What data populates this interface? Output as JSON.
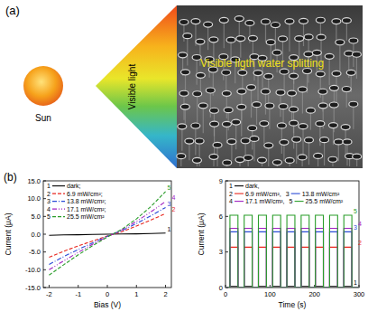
{
  "figure": {
    "panel_a": {
      "label": "(a)",
      "sun": "Sun",
      "light": "Visible light",
      "caption": "Visible ligth water splitting"
    },
    "panel_b": {
      "label": "(b)"
    }
  },
  "chart_data": [
    {
      "type": "line",
      "xlabel": "Bias (V)",
      "ylabel": "Current (μA)",
      "x": [
        -2,
        -1.5,
        -1,
        -0.5,
        0,
        0.5,
        1,
        1.5,
        2
      ],
      "xlim": [
        -2.2,
        2.2
      ],
      "ylim": [
        -15,
        15
      ],
      "xticks": [
        -2,
        -1,
        0,
        1,
        2
      ],
      "yticks": [
        {
          "value": -15,
          "label": "-15.0"
        },
        {
          "value": -10,
          "label": "-10.0"
        },
        {
          "value": -5,
          "label": "-5.0"
        },
        {
          "value": 0,
          "label": "0.0"
        },
        {
          "value": 5,
          "label": "5.0"
        },
        {
          "value": 10,
          "label": "10.0"
        },
        {
          "value": 15,
          "label": "15.0"
        }
      ],
      "legend": "upper left",
      "series": [
        {
          "label": "1",
          "name": "dark;",
          "color": "#000000",
          "line_style": "solid",
          "values": [
            -0.3,
            -0.2,
            -0.15,
            -0.05,
            0,
            0.05,
            0.1,
            0.2,
            0.3
          ]
        },
        {
          "label": "2",
          "name": "6.9 mW/cm²;",
          "color": "#e8271f",
          "line_style": "dashed",
          "values": [
            -6.5,
            -4.8,
            -3.3,
            -1.9,
            -0.5,
            0.7,
            2.3,
            4.0,
            5.8
          ]
        },
        {
          "label": "3",
          "name": "13.8 mW/cm²;",
          "color": "#2a4bd7",
          "line_style": "dashdot",
          "values": [
            -8.5,
            -6.3,
            -4.3,
            -2.4,
            -0.6,
            1.0,
            3.0,
            5.2,
            7.5
          ]
        },
        {
          "label": "4",
          "name": "17.1 mW/cm²;",
          "color": "#a020c0",
          "line_style": "dashdotdot",
          "values": [
            -10.0,
            -7.5,
            -5.1,
            -2.8,
            -0.7,
            1.2,
            3.6,
            6.3,
            9.2
          ]
        },
        {
          "label": "5",
          "name": "25.5 mW/cm²",
          "color": "#2a9d2a",
          "line_style": "dashed",
          "values": [
            -11.5,
            -8.6,
            -5.8,
            -3.2,
            -0.8,
            1.4,
            4.3,
            7.8,
            12.0
          ]
        }
      ]
    },
    {
      "type": "line",
      "xlabel": "Time (s)",
      "ylabel": "Current (μA)",
      "x": [
        0,
        10,
        10,
        28,
        28,
        42,
        42,
        60,
        60,
        74,
        74,
        92,
        92,
        106,
        106,
        124,
        124,
        138,
        138,
        156,
        156,
        170,
        170,
        188,
        188,
        202,
        202,
        220,
        220,
        234,
        234,
        252,
        252,
        266,
        266,
        284,
        284,
        300
      ],
      "xlim": [
        0,
        300
      ],
      "ylim": [
        0,
        9
      ],
      "xticks": [
        0,
        100,
        200,
        300
      ],
      "yticks": [
        0,
        3,
        6,
        9
      ],
      "legend": "upper left",
      "series": [
        {
          "label": "1",
          "name": "dark,",
          "color": "#000000",
          "line_style": "solid",
          "values": [
            0,
            0,
            0.1,
            0.1,
            0,
            0,
            0.1,
            0.1,
            0,
            0,
            0.1,
            0.1,
            0,
            0,
            0.1,
            0.1,
            0,
            0,
            0.1,
            0.1,
            0,
            0,
            0.1,
            0.1,
            0,
            0,
            0.1,
            0.1,
            0,
            0,
            0.1,
            0.1,
            0,
            0,
            0.1,
            0.1,
            0,
            0
          ]
        },
        {
          "label": "2",
          "name": "6.9 mW/cm²,",
          "color": "#e8271f",
          "line_style": "solid",
          "values": [
            0,
            0,
            3.4,
            3.4,
            0,
            0,
            3.4,
            3.4,
            0,
            0,
            3.4,
            3.4,
            0,
            0,
            3.4,
            3.4,
            0,
            0,
            3.4,
            3.4,
            0,
            0,
            3.4,
            3.4,
            0,
            0,
            3.4,
            3.4,
            0,
            0,
            3.4,
            3.4,
            0,
            0,
            3.4,
            3.4,
            0,
            0
          ]
        },
        {
          "label": "3",
          "name": "13.8 mW/cm²",
          "color": "#2a4bd7",
          "line_style": "solid",
          "values": [
            0,
            0,
            4.7,
            4.7,
            0,
            0,
            4.7,
            4.7,
            0,
            0,
            4.7,
            4.7,
            0,
            0,
            4.7,
            4.7,
            0,
            0,
            4.7,
            4.7,
            0,
            0,
            4.7,
            4.7,
            0,
            0,
            4.7,
            4.7,
            0,
            0,
            4.7,
            4.7,
            0,
            0,
            4.7,
            4.7,
            0,
            0
          ]
        },
        {
          "label": "4",
          "name": "17.1 mW/cm²,",
          "color": "#a020c0",
          "line_style": "solid",
          "values": [
            0,
            0,
            5.0,
            5.0,
            0,
            0,
            5.0,
            5.0,
            0,
            0,
            5.0,
            5.0,
            0,
            0,
            5.0,
            5.0,
            0,
            0,
            5.0,
            5.0,
            0,
            0,
            5.0,
            5.0,
            0,
            0,
            5.0,
            5.0,
            0,
            0,
            5.0,
            5.0,
            0,
            0,
            5.0,
            5.0,
            0,
            0
          ]
        },
        {
          "label": "5",
          "name": "25.5 mW/cm²",
          "color": "#2a9d2a",
          "line_style": "solid",
          "values": [
            0,
            0,
            6.1,
            6.1,
            0,
            0,
            6.1,
            6.1,
            0,
            0,
            6.1,
            6.1,
            0,
            0,
            6.1,
            6.1,
            0,
            0,
            6.1,
            6.1,
            0,
            0,
            6.1,
            6.1,
            0,
            0,
            6.1,
            6.1,
            0,
            0,
            6.1,
            6.1,
            0,
            0,
            6.1,
            6.1,
            0,
            0
          ]
        }
      ]
    }
  ]
}
